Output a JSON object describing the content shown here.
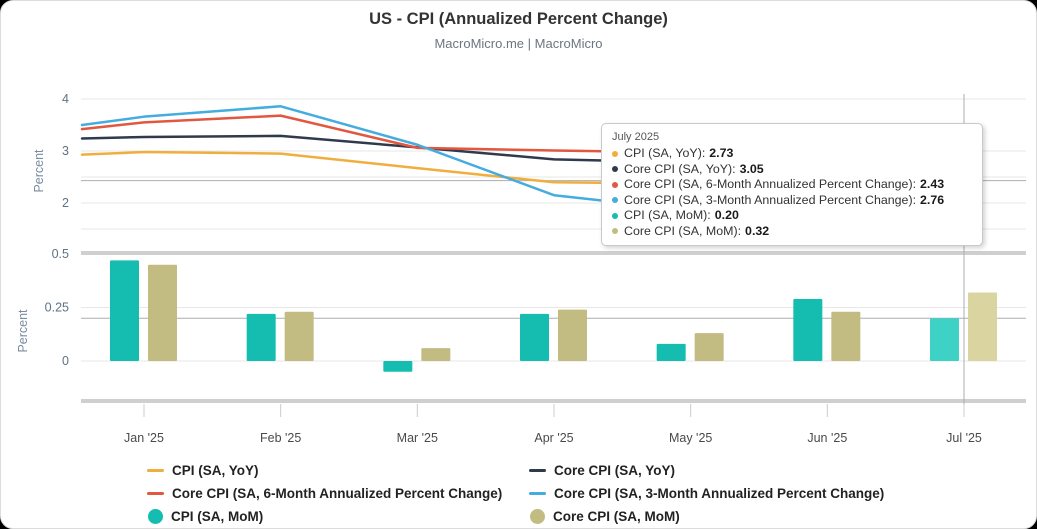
{
  "header": {
    "title": "US - CPI (Annualized Percent Change)",
    "subtitle": "MacroMicro.me | MacroMicro"
  },
  "chart_data": [
    {
      "type": "line",
      "panel": "top",
      "ylabel": "Percent",
      "ylim": [
        1.15,
        4.1
      ],
      "yticks": [
        {
          "value": 4,
          "label": "4"
        },
        {
          "value": 3,
          "label": "3"
        },
        {
          "value": 2,
          "label": "2"
        }
      ],
      "gridline_values": [
        4,
        3,
        2.5,
        2,
        1.5
      ],
      "x_categories": [
        "Jan '25",
        "Feb '25",
        "Mar '25",
        "Apr '25",
        "May '25",
        "Jun '25",
        "Jul '25"
      ],
      "crosshair_y_value": 2.43,
      "series": [
        {
          "name": "CPI (SA, YoY)",
          "color": "#efae3d",
          "edge_value": 2.93,
          "values": [
            2.98,
            2.95,
            2.67,
            2.4,
            2.37,
            2.55,
            2.73
          ]
        },
        {
          "name": "Core CPI (SA, YoY)",
          "color": "#2f3a4d",
          "edge_value": 3.24,
          "values": [
            3.27,
            3.29,
            3.07,
            2.84,
            2.78,
            2.9,
            3.05
          ]
        },
        {
          "name": "Core CPI (SA, 6-Month Annualized Percent Change)",
          "color": "#e2573f",
          "edge_value": 3.42,
          "values": [
            3.55,
            3.68,
            3.06,
            3.01,
            2.97,
            2.8,
            2.43
          ]
        },
        {
          "name": "Core CPI (SA, 3-Month Annualized Percent Change)",
          "color": "#45acdf",
          "edge_value": 3.5,
          "values": [
            3.66,
            3.86,
            3.12,
            2.15,
            1.86,
            2.2,
            2.76
          ]
        }
      ]
    },
    {
      "type": "bar",
      "panel": "bottom",
      "ylabel": "Percent",
      "ylim": [
        -0.23,
        0.5
      ],
      "yticks": [
        {
          "value": 0.5,
          "label": "0.5"
        },
        {
          "value": 0.25,
          "label": "0.25"
        },
        {
          "value": 0,
          "label": "0"
        }
      ],
      "gridline_values": [
        0.25,
        0
      ],
      "x_categories": [
        "Jan '25",
        "Feb '25",
        "Mar '25",
        "Apr '25",
        "May '25",
        "Jun '25",
        "Jul '25"
      ],
      "crosshair_y_value": 0.2,
      "highlight_index": 6,
      "series": [
        {
          "name": "CPI (SA, MoM)",
          "color": "#15bdb1",
          "highlight_color": "#3dd2c5",
          "values": [
            0.47,
            0.22,
            -0.05,
            0.22,
            0.08,
            0.29,
            0.2
          ]
        },
        {
          "name": "Core CPI (SA, MoM)",
          "color": "#c2bc82",
          "highlight_color": "#dad5a0",
          "values": [
            0.45,
            0.23,
            0.06,
            0.24,
            0.13,
            0.23,
            0.32
          ]
        }
      ]
    }
  ],
  "tooltip": {
    "title": "July 2025",
    "items": [
      {
        "label": "CPI (SA, YoY)",
        "value": "2.73",
        "color": "#efae3d"
      },
      {
        "label": "Core CPI (SA, YoY)",
        "value": "3.05",
        "color": "#2f3a4d"
      },
      {
        "label": "Core CPI (SA, 6-Month Annualized Percent Change)",
        "value": "2.43",
        "color": "#e2573f"
      },
      {
        "label": "Core CPI (SA, 3-Month Annualized Percent Change)",
        "value": "2.76",
        "color": "#45acdf"
      },
      {
        "label": "CPI (SA, MoM)",
        "value": "0.20",
        "color": "#15bdb1"
      },
      {
        "label": "Core CPI (SA, MoM)",
        "value": "0.32",
        "color": "#c2bc82"
      }
    ]
  },
  "legend": {
    "columns": [
      [
        {
          "label": "CPI (SA, YoY)",
          "color": "#efae3d",
          "marker": "line"
        },
        {
          "label": "Core CPI (SA, 6-Month Annualized Percent Change)",
          "color": "#e2573f",
          "marker": "line"
        },
        {
          "label": "CPI (SA, MoM)",
          "color": "#15bdb1",
          "marker": "circle"
        }
      ],
      [
        {
          "label": "Core CPI (SA, YoY)",
          "color": "#2f3a4d",
          "marker": "line"
        },
        {
          "label": "Core CPI (SA, 3-Month Annualized Percent Change)",
          "color": "#45acdf",
          "marker": "line"
        },
        {
          "label": "Core CPI (SA, MoM)",
          "color": "#c2bc82",
          "marker": "circle"
        }
      ]
    ]
  },
  "crosshair": {
    "x_label": "Jul '25"
  }
}
